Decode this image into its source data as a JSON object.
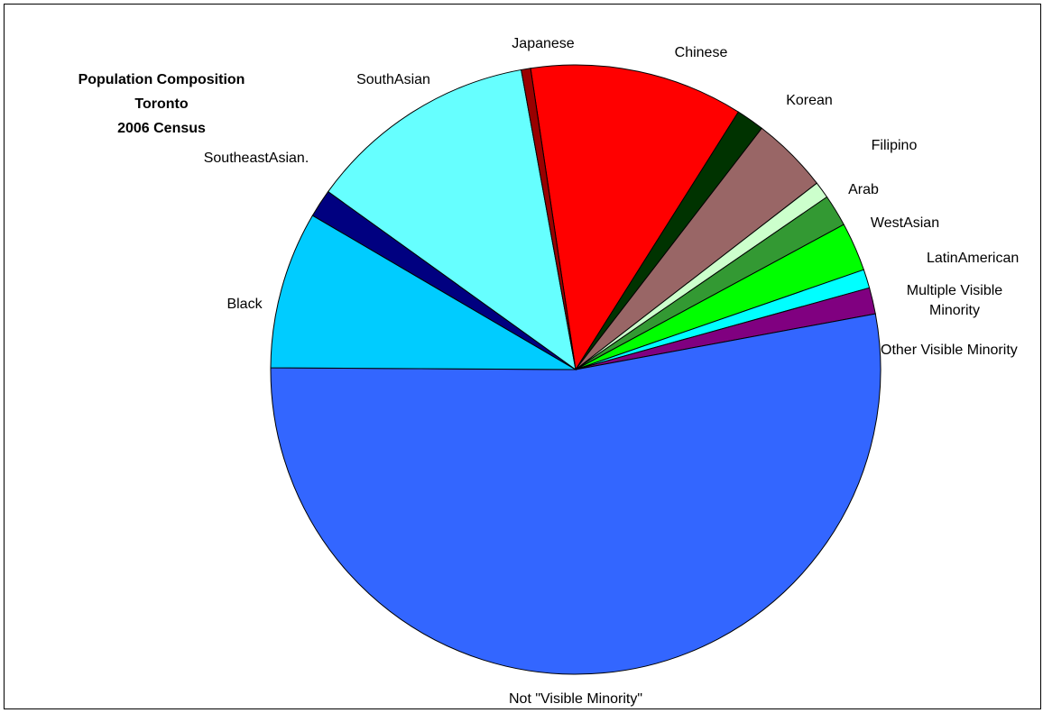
{
  "chart_data": {
    "type": "pie",
    "title_lines": [
      "Population Composition",
      "Toronto",
      "2006 Census"
    ],
    "slices": [
      {
        "label_lines": [
          "Chinese"
        ],
        "value": 11.4,
        "color": "#FF0000"
      },
      {
        "label_lines": [
          "Korean"
        ],
        "value": 1.5,
        "color": "#003300"
      },
      {
        "label_lines": [
          "Filipino"
        ],
        "value": 4.1,
        "color": "#996666"
      },
      {
        "label_lines": [
          "Arab"
        ],
        "value": 0.9,
        "color": "#CCFFCC"
      },
      {
        "label_lines": [
          "WestAsian"
        ],
        "value": 1.7,
        "color": "#339933"
      },
      {
        "label_lines": [
          "LatinAmerican"
        ],
        "value": 2.6,
        "color": "#00FF00"
      },
      {
        "label_lines": [
          "Multiple Visible",
          "Minority"
        ],
        "value": 1.0,
        "color": "#00FFFF"
      },
      {
        "label_lines": [
          "Other Visible Minority"
        ],
        "value": 1.4,
        "color": "#800080"
      },
      {
        "label_lines": [
          "Not \"Visible Minority\""
        ],
        "value": 53.4,
        "color": "#3366FF"
      },
      {
        "label_lines": [
          "Black"
        ],
        "value": 8.4,
        "color": "#00CCFF"
      },
      {
        "label_lines": [
          "SoutheastAsian."
        ],
        "value": 1.5,
        "color": "#000080"
      },
      {
        "label_lines": [
          "SouthAsian"
        ],
        "value": 12.3,
        "color": "#66FFFF"
      },
      {
        "label_lines": [
          "Japanese"
        ],
        "value": 0.5,
        "color": "#990000"
      }
    ]
  }
}
